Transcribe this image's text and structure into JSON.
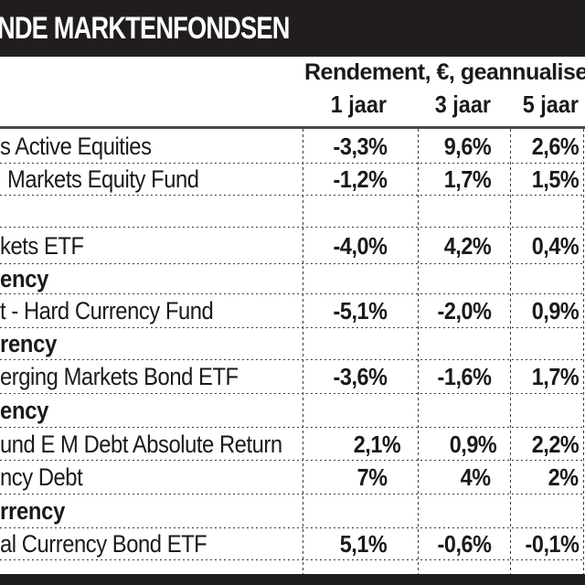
{
  "chart_data": {
    "type": "table",
    "title": "NDE MARKTENFONDSEN",
    "column_group_label": "Rendement, €, geannualiseerd",
    "columns": [
      "1 jaar",
      "3 jaar",
      "5 jaar"
    ],
    "rows": [
      {
        "label": "s Active Equities",
        "style": "fund",
        "values": [
          "-3,3%",
          "9,6%",
          "2,6%"
        ]
      },
      {
        "label": "Markets Equity Fund",
        "style": "fund",
        "values": [
          "-1,2%",
          "1,7%",
          "1,5%"
        ]
      },
      {
        "label": "",
        "style": "empty",
        "values": [
          "",
          "",
          ""
        ]
      },
      {
        "label": "kets ETF",
        "style": "fund",
        "values": [
          "-4,0%",
          "4,2%",
          "0,4%"
        ]
      },
      {
        "label": "ency",
        "style": "section",
        "values": [
          "",
          "",
          ""
        ]
      },
      {
        "label": "t - Hard Currency Fund",
        "style": "fund",
        "values": [
          "-5,1%",
          "-2,0%",
          "0,9%"
        ]
      },
      {
        "label": "rency",
        "style": "section",
        "values": [
          "",
          "",
          ""
        ]
      },
      {
        "label": "erging Markets Bond ETF",
        "style": "fund",
        "values": [
          "-3,6%",
          "-1,6%",
          "1,7%"
        ]
      },
      {
        "label": "ency",
        "style": "section",
        "values": [
          "",
          "",
          ""
        ]
      },
      {
        "label": "und E M Debt Absolute Return",
        "style": "fund",
        "values": [
          "2,1%",
          "0,9%",
          "2,2%"
        ]
      },
      {
        "label": "ncy Debt",
        "style": "fund",
        "values": [
          "7%",
          "4%",
          "2%"
        ]
      },
      {
        "label": "rrency",
        "style": "section",
        "values": [
          "",
          "",
          ""
        ]
      },
      {
        "label": "al Currency Bond ETF",
        "style": "fund",
        "values": [
          "5,1%",
          "-0,6%",
          "-0,1%"
        ]
      },
      {
        "label": "",
        "style": "empty",
        "values": [
          "",
          "",
          ""
        ]
      }
    ]
  },
  "colors": {
    "bar_background": "#211d1e",
    "title_text": "#ffffff",
    "body_text": "#1a1a1a",
    "dashed_line": "#3c3c3c",
    "table_top_border": "#4a4a4a"
  }
}
